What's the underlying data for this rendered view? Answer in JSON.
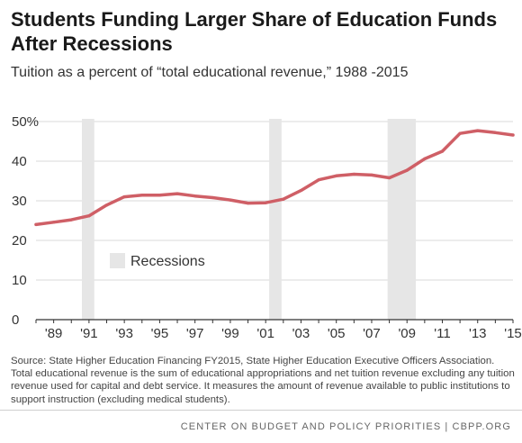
{
  "header": {
    "title": "Students Funding Larger Share of Education Funds After Recessions",
    "subtitle": "Tuition as a percent of “total educational revenue,” 1988 -2015"
  },
  "footer": {
    "source": "Source: State Higher Education Financing FY2015, State Higher Education Executive Officers Association. Total educational revenue is the sum of educational appropriations and net tuition revenue excluding any tuition revenue used for capital and debt service. It measures the amount of revenue available to public institutions to support instruction (excluding medical students).",
    "organization": "CENTER ON BUDGET AND POLICY PRIORITIES | CBPP.ORG"
  },
  "colors": {
    "line": "#cf5f66",
    "recession": "#e6e6e6",
    "axis": "#333333",
    "grid": "#d9d9d9"
  },
  "chart_data": {
    "type": "line",
    "title": "Students Funding Larger Share of Education Funds After Recessions",
    "subtitle": "Tuition as a percent of “total educational revenue,” 1988 -2015",
    "xlabel": "",
    "ylabel": "",
    "xlim": [
      1988,
      2015
    ],
    "ylim": [
      0,
      50
    ],
    "grid": true,
    "y_ticks": [
      0,
      10,
      20,
      30,
      40,
      50
    ],
    "y_tick_labels": [
      "0",
      "10",
      "20",
      "30",
      "40",
      "50%"
    ],
    "x_ticks": [
      1989,
      1991,
      1993,
      1995,
      1997,
      1999,
      2001,
      2003,
      2005,
      2007,
      2009,
      2011,
      2013,
      2015
    ],
    "x_tick_labels": [
      "'89",
      "'91",
      "'93",
      "'95",
      "'97",
      "'99",
      "'01",
      "'03",
      "'05",
      "'07",
      "'09",
      "'11",
      "'13",
      "'15"
    ],
    "recessions": [
      [
        1990.6,
        1991.3
      ],
      [
        2001.2,
        2001.9
      ],
      [
        2007.9,
        2009.5
      ]
    ],
    "legend": {
      "label": "Recessions",
      "placement": "middle-left"
    },
    "series": [
      {
        "x": [
          1988,
          1989,
          1990,
          1991,
          1992,
          1993,
          1994,
          1995,
          1996,
          1997,
          1998,
          1999,
          2000,
          2001,
          2002,
          2003,
          2004,
          2005,
          2006,
          2007,
          2008,
          2009,
          2010,
          2011,
          2012,
          2013,
          2014,
          2015
        ],
        "values": [
          24.0,
          24.6,
          25.2,
          26.2,
          28.9,
          31.0,
          31.4,
          31.4,
          31.8,
          31.2,
          30.8,
          30.2,
          29.4,
          29.5,
          30.4,
          32.6,
          35.3,
          36.3,
          36.7,
          36.5,
          35.8,
          37.7,
          40.6,
          42.5,
          47.0,
          47.7,
          47.2,
          46.6
        ]
      }
    ]
  }
}
